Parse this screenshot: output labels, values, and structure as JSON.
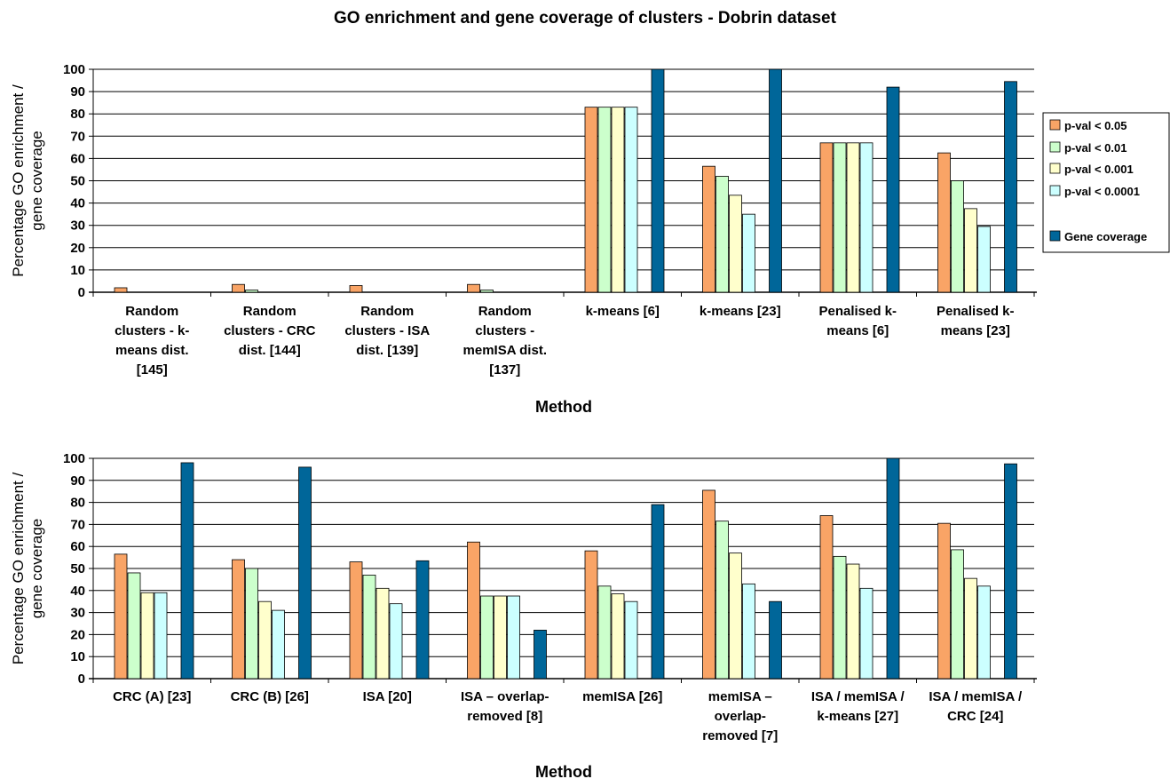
{
  "title": "GO enrichment and gene coverage of clusters - Dobrin dataset",
  "legend": {
    "position": "right",
    "entries": [
      {
        "label": "p-val < 0.05",
        "color": "#f9a466"
      },
      {
        "label": "p-val < 0.01",
        "color": "#ccffcc"
      },
      {
        "label": "p-val < 0.001",
        "color": "#ffffcc"
      },
      {
        "label": "p-val < 0.0001",
        "color": "#ccffff"
      },
      {
        "label": "Gene coverage",
        "color": "#006699"
      }
    ]
  },
  "chart_data": [
    {
      "type": "bar",
      "title": "GO enrichment and gene coverage of clusters - Dobrin dataset",
      "ylabel": [
        "Percentage GO enrichment /",
        "gene coverage"
      ],
      "xlabel": "Method",
      "ylim": [
        0,
        100
      ],
      "yticks": [
        "0",
        "10",
        "20",
        "30",
        "40",
        "50",
        "60",
        "70",
        "80",
        "90",
        "100"
      ],
      "grid": true,
      "categories": [
        [
          "Random",
          "clusters - k-",
          "means dist.",
          "[145]"
        ],
        [
          "Random",
          "clusters - CRC",
          "dist. [144]"
        ],
        [
          "Random",
          "clusters - ISA",
          "dist. [139]"
        ],
        [
          "Random",
          "clusters -",
          "memISA dist.",
          "[137]"
        ],
        [
          "k-means [6]"
        ],
        [
          "k-means [23]"
        ],
        [
          "Penalised k-",
          "means [6]"
        ],
        [
          "Penalised k-",
          "means [23]"
        ]
      ],
      "series": [
        {
          "name": "p-val < 0.05",
          "values": [
            2,
            3.5,
            3,
            3.5,
            83,
            56.5,
            67,
            62.5
          ]
        },
        {
          "name": "p-val < 0.01",
          "values": [
            0,
            1,
            0,
            1,
            83,
            52,
            67,
            50
          ]
        },
        {
          "name": "p-val < 0.001",
          "values": [
            0,
            0,
            0,
            0,
            83,
            43.5,
            67,
            37.5
          ]
        },
        {
          "name": "p-val < 0.0001",
          "values": [
            0,
            0,
            0,
            0,
            83,
            35,
            67,
            29.5
          ]
        },
        {
          "name": "Gene coverage",
          "values": [
            0,
            0,
            0,
            0,
            100,
            100,
            92,
            94.5
          ]
        }
      ]
    },
    {
      "type": "bar",
      "ylabel": [
        "Percentage GO enrichment /",
        "gene coverage"
      ],
      "xlabel": "Method",
      "ylim": [
        0,
        100
      ],
      "yticks": [
        "0",
        "10",
        "20",
        "30",
        "40",
        "50",
        "60",
        "70",
        "80",
        "90",
        "100"
      ],
      "grid": true,
      "categories": [
        [
          "CRC (A) [23]"
        ],
        [
          "CRC (B) [26]"
        ],
        [
          "ISA [20]"
        ],
        [
          "ISA – overlap-",
          "removed [8]"
        ],
        [
          "memISA [26]"
        ],
        [
          "memISA –",
          "overlap-",
          "removed [7]"
        ],
        [
          "ISA / memISA /",
          "k-means [27]"
        ],
        [
          "ISA / memISA /",
          "CRC [24]"
        ]
      ],
      "series": [
        {
          "name": "p-val < 0.05",
          "values": [
            56.5,
            54,
            53,
            62,
            58,
            85.5,
            74,
            70.5
          ]
        },
        {
          "name": "p-val < 0.01",
          "values": [
            48,
            50,
            47,
            37.5,
            42,
            71.5,
            55.5,
            58.5
          ]
        },
        {
          "name": "p-val < 0.001",
          "values": [
            39,
            35,
            41,
            37.5,
            38.5,
            57,
            52,
            45.5
          ]
        },
        {
          "name": "p-val < 0.0001",
          "values": [
            39,
            31,
            34,
            37.5,
            35,
            43,
            41,
            42
          ]
        },
        {
          "name": "Gene coverage",
          "values": [
            98,
            96,
            53.5,
            22,
            79,
            35,
            100,
            97.5
          ]
        }
      ]
    }
  ]
}
